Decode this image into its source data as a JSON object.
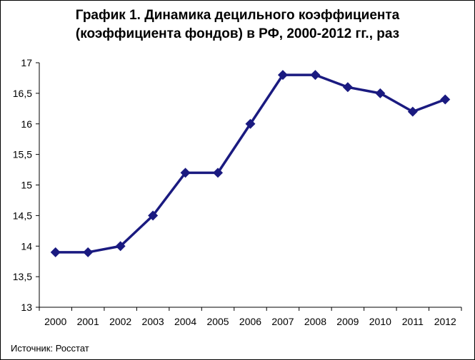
{
  "chart_data": {
    "type": "line",
    "title_lines": [
      "График 1. Динамика децильного коэффициента",
      "(коэффициента фондов) в РФ, 2000-2012 гг., раз"
    ],
    "categories": [
      "2000",
      "2001",
      "2002",
      "2003",
      "2004",
      "2005",
      "2006",
      "2007",
      "2008",
      "2009",
      "2010",
      "2011",
      "2012"
    ],
    "series": [
      {
        "values": [
          13.9,
          13.9,
          14.0,
          14.5,
          15.2,
          15.2,
          16.0,
          16.8,
          16.8,
          16.6,
          16.5,
          16.2,
          16.4
        ]
      }
    ],
    "ylim": [
      13,
      17
    ],
    "yticks": [
      13,
      13.5,
      14,
      14.5,
      15,
      15.5,
      16,
      16.5,
      17
    ],
    "ytick_labels": [
      "13",
      "13,5",
      "14",
      "14,5",
      "15",
      "15,5",
      "16",
      "16,5",
      "17"
    ],
    "grid": false,
    "marker": "diamond",
    "line_color": "#1a1a80",
    "source": "Источник: Росстат"
  }
}
